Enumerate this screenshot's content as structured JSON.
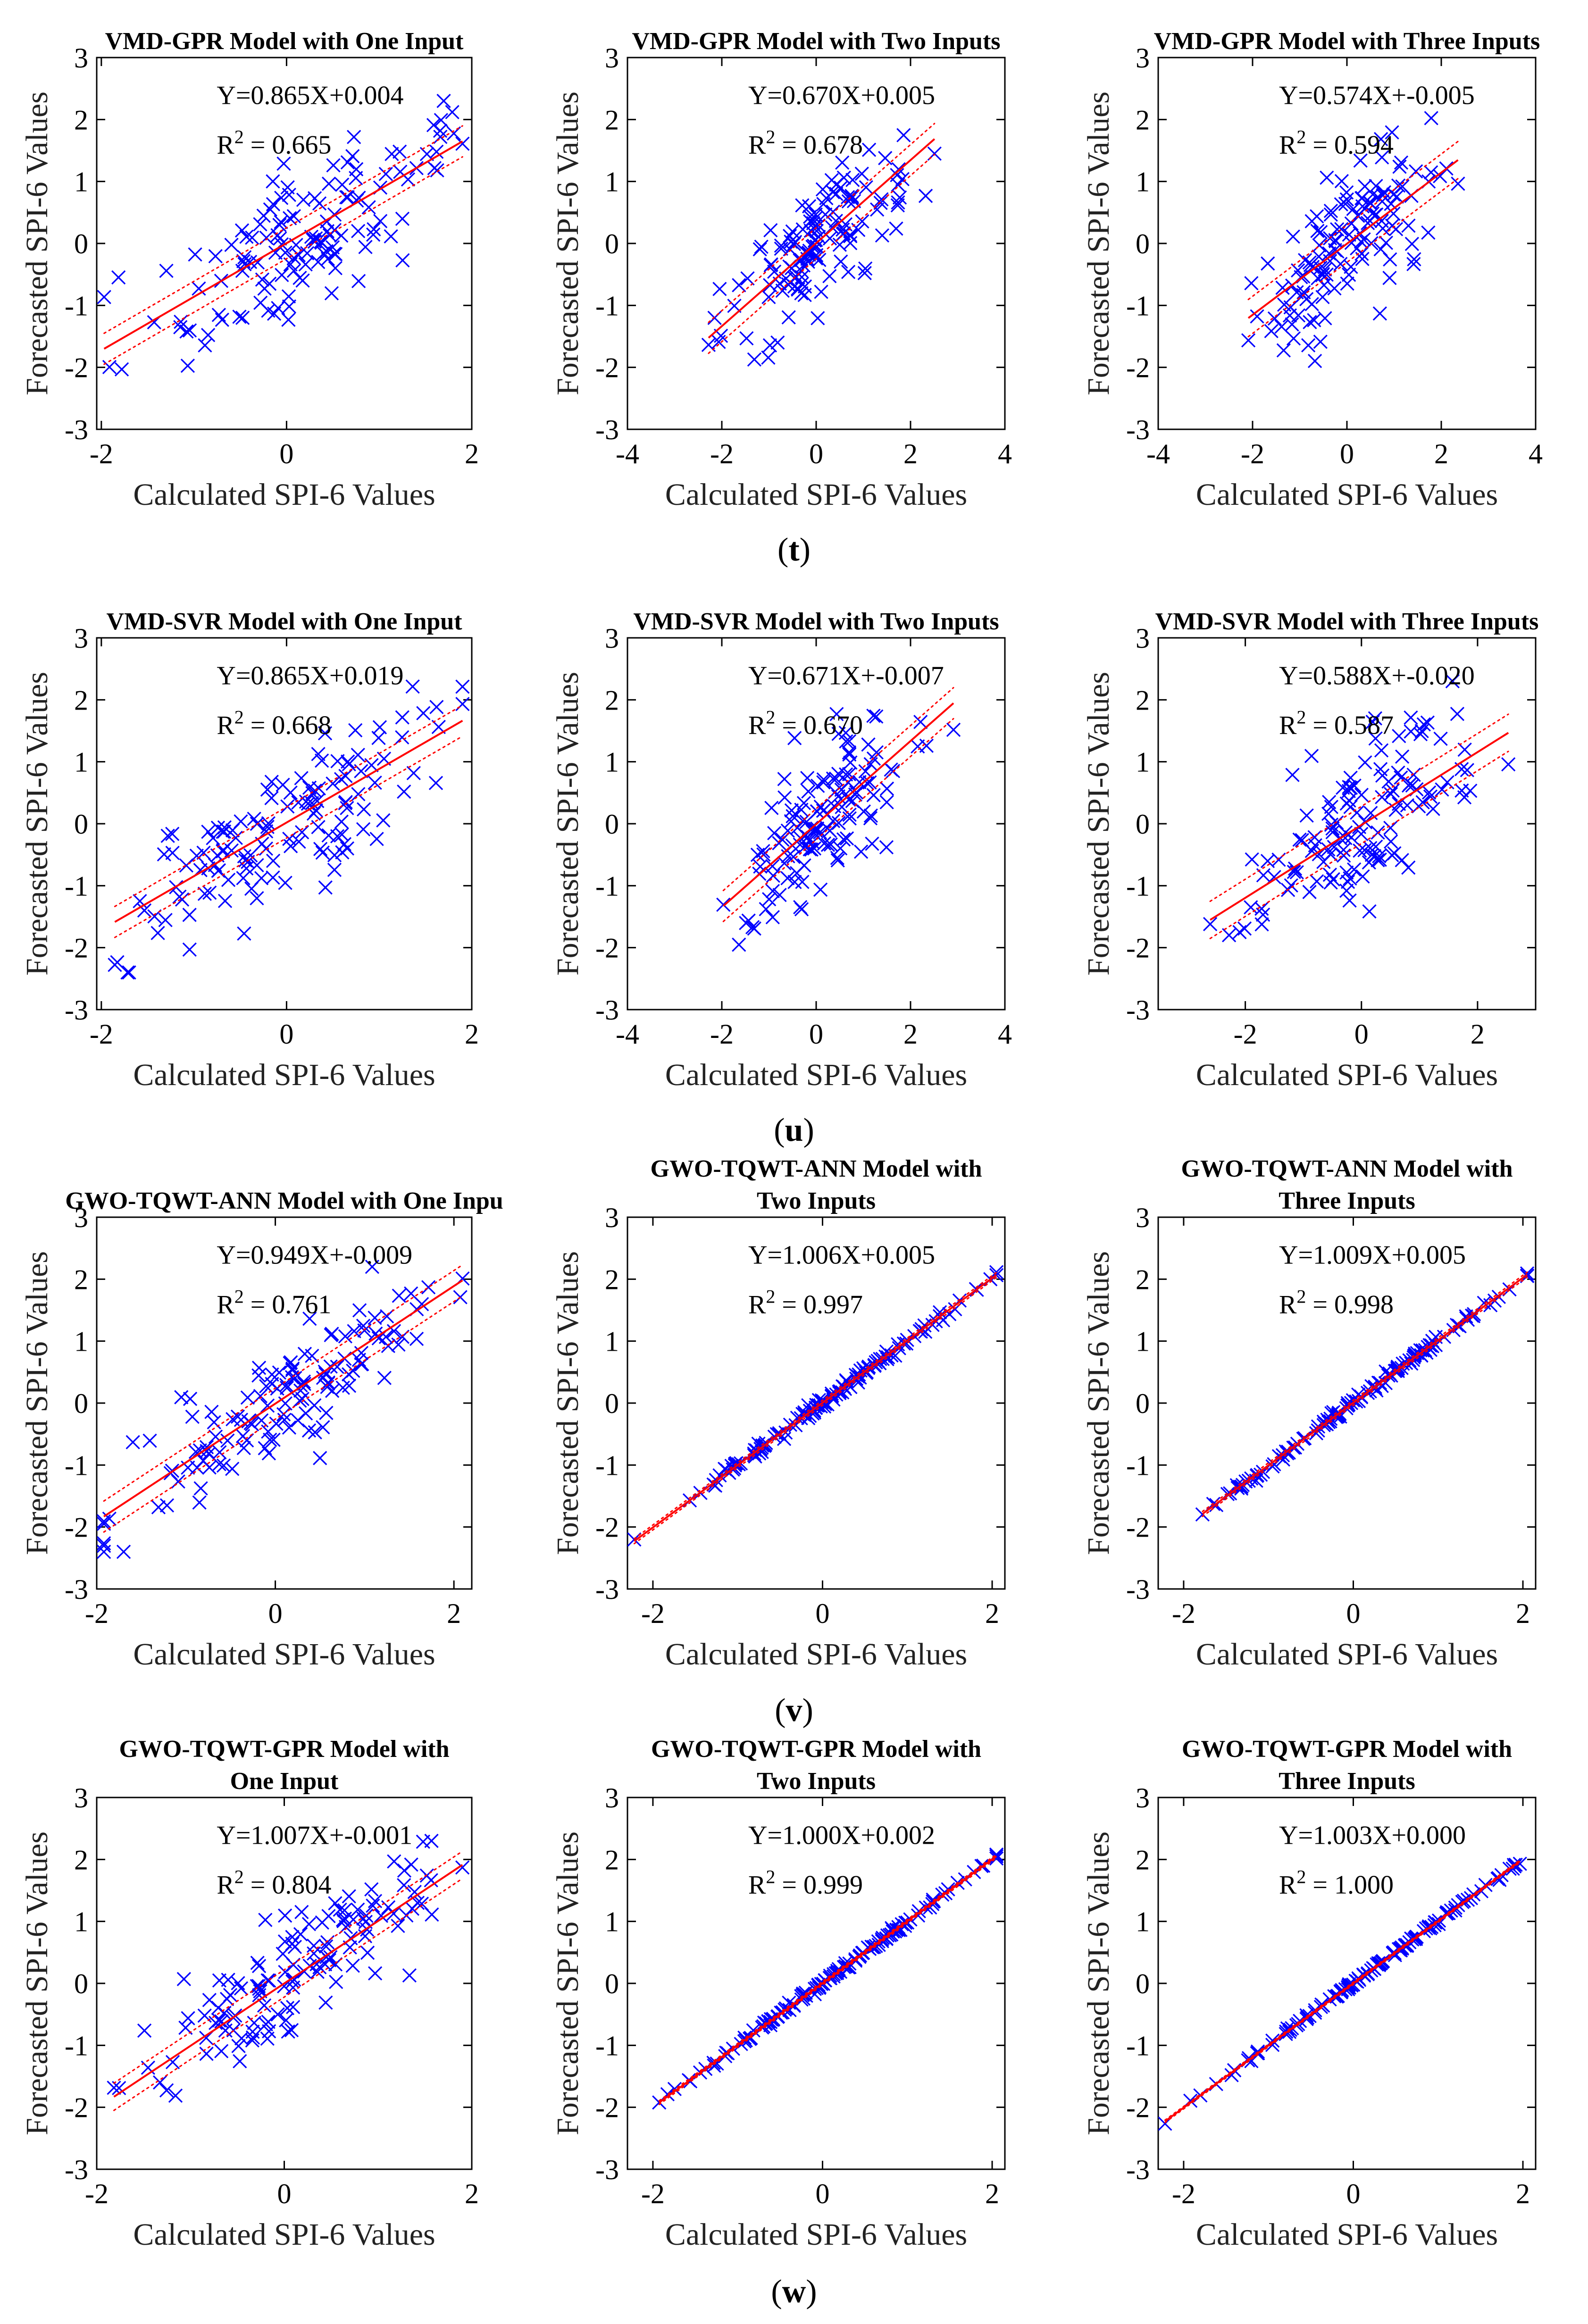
{
  "figure": {
    "row_labels": [
      "(t)",
      "(u)",
      "(v)",
      "(w)"
    ],
    "colors": {
      "points": "#0000ff",
      "fit": "#ff0000",
      "axis": "#000000",
      "background": "#ffffff"
    }
  },
  "chart_data": [
    {
      "type": "scatter",
      "title": [
        "VMD-GPR Model with One Input"
      ],
      "xlabel": "Calculated SPI-6 Values",
      "ylabel": "Forecasted SPI-6 Values",
      "xlim": [
        -2.05,
        2.0
      ],
      "xticks": [
        -2,
        0,
        2
      ],
      "ylim": [
        -3,
        3
      ],
      "yticks": [
        -3,
        -2,
        -1,
        0,
        1,
        2,
        3
      ],
      "fit": {
        "slope": 0.865,
        "intercept": 0.004,
        "ci_offset": 0.25
      },
      "equation": "Y=0.865X+0.004",
      "r2": "= 0.665",
      "noise": 0.55,
      "n": 135,
      "seed": 11
    },
    {
      "type": "scatter",
      "title": [
        "VMD-GPR Model with Two Inputs"
      ],
      "xlabel": "Calculated SPI-6 Values",
      "ylabel": "Forecasted SPI-6 Values",
      "xlim": [
        -4,
        4
      ],
      "xticks": [
        -4,
        -2,
        0,
        2,
        4
      ],
      "ylim": [
        -3,
        3
      ],
      "yticks": [
        -3,
        -2,
        -1,
        0,
        1,
        2,
        3
      ],
      "fit": {
        "slope": 0.67,
        "intercept": 0.005,
        "ci_offset": 0.25
      },
      "equation": "Y=0.670X+0.005",
      "r2": "= 0.678",
      "noise": 0.5,
      "n": 135,
      "seed": 12
    },
    {
      "type": "scatter",
      "title": [
        "VMD-GPR Model with Three Inputs"
      ],
      "xlabel": "Calculated SPI-6 Values",
      "ylabel": "Forecasted SPI-6 Values",
      "xlim": [
        -4,
        4
      ],
      "xticks": [
        -4,
        -2,
        0,
        2,
        4
      ],
      "ylim": [
        -3,
        3
      ],
      "yticks": [
        -3,
        -2,
        -1,
        0,
        1,
        2,
        3
      ],
      "fit": {
        "slope": 0.574,
        "intercept": -0.005,
        "ci_offset": 0.3
      },
      "equation": "Y=0.574X+-0.005",
      "r2": "= 0.594",
      "noise": 0.6,
      "n": 135,
      "seed": 13
    },
    {
      "type": "scatter",
      "title": [
        "VMD-SVR Model with One Input"
      ],
      "xlabel": "Calculated SPI-6 Values",
      "ylabel": "Forecasted SPI-6 Values",
      "xlim": [
        -2.05,
        2.0
      ],
      "xticks": [
        -2,
        0,
        2
      ],
      "ylim": [
        -3,
        3
      ],
      "yticks": [
        -3,
        -2,
        -1,
        0,
        1,
        2,
        3
      ],
      "fit": {
        "slope": 0.865,
        "intercept": 0.019,
        "ci_offset": 0.25
      },
      "equation": "Y=0.865X+0.019",
      "r2": "= 0.668",
      "noise": 0.55,
      "n": 135,
      "seed": 21
    },
    {
      "type": "scatter",
      "title": [
        "VMD-SVR Model with Two Inputs"
      ],
      "xlabel": "Calculated SPI-6 Values",
      "ylabel": "Forecasted SPI-6 Values",
      "xlim": [
        -4,
        4
      ],
      "xticks": [
        -4,
        -2,
        0,
        2,
        4
      ],
      "ylim": [
        -3,
        3
      ],
      "yticks": [
        -3,
        -2,
        -1,
        0,
        1,
        2,
        3
      ],
      "fit": {
        "slope": 0.671,
        "intercept": -0.007,
        "ci_offset": 0.25
      },
      "equation": "Y=0.671X+-0.007",
      "r2": "= 0.670",
      "noise": 0.5,
      "n": 135,
      "seed": 22
    },
    {
      "type": "scatter",
      "title": [
        "VMD-SVR Model with Three Inputs"
      ],
      "xlabel": "Calculated SPI-6 Values",
      "ylabel": "Forecasted SPI-6 Values",
      "xlim": [
        -3.5,
        3.0
      ],
      "xticks": [
        -2,
        0,
        2
      ],
      "ylim": [
        -3,
        3
      ],
      "yticks": [
        -3,
        -2,
        -1,
        0,
        1,
        2,
        3
      ],
      "fit": {
        "slope": 0.588,
        "intercept": -0.02,
        "ci_offset": 0.3
      },
      "equation": "Y=0.588X+-0.020",
      "r2": "= 0.587",
      "noise": 0.6,
      "n": 135,
      "seed": 23
    },
    {
      "type": "scatter",
      "title": [
        "GWO-TQWT-ANN Model with One Inpu"
      ],
      "xlabel": "Calculated SPI-6 Values",
      "ylabel": "Forecasted SPI-6 Values",
      "xlim": [
        -2.0,
        2.2
      ],
      "xticks": [
        -2,
        0,
        2
      ],
      "ylim": [
        -3,
        3
      ],
      "yticks": [
        -3,
        -2,
        -1,
        0,
        1,
        2,
        3
      ],
      "fit": {
        "slope": 0.949,
        "intercept": -0.009,
        "ci_offset": 0.25
      },
      "equation": "Y=0.949X+-0.009",
      "r2": "= 0.761",
      "noise": 0.45,
      "n": 135,
      "seed": 31
    },
    {
      "type": "scatter",
      "title": [
        "GWO-TQWT-ANN Model with",
        "Two Inputs"
      ],
      "xlabel": "Calculated SPI-6 Values",
      "ylabel": "Forecasted SPI-6 Values",
      "xlim": [
        -2.3,
        2.15
      ],
      "xticks": [
        -2,
        0,
        2
      ],
      "ylim": [
        -3,
        3
      ],
      "yticks": [
        -3,
        -2,
        -1,
        0,
        1,
        2,
        3
      ],
      "fit": {
        "slope": 1.006,
        "intercept": 0.005,
        "ci_offset": 0.04
      },
      "equation": "Y=1.006X+0.005",
      "r2": "= 0.997",
      "noise": 0.05,
      "n": 135,
      "seed": 32
    },
    {
      "type": "scatter",
      "title": [
        "GWO-TQWT-ANN Model with",
        "Three Inputs"
      ],
      "xlabel": "Calculated SPI-6 Values",
      "ylabel": "Forecasted SPI-6 Values",
      "xlim": [
        -2.3,
        2.15
      ],
      "xticks": [
        -2,
        0,
        2
      ],
      "ylim": [
        -3,
        3
      ],
      "yticks": [
        -3,
        -2,
        -1,
        0,
        1,
        2,
        3
      ],
      "fit": {
        "slope": 1.009,
        "intercept": 0.005,
        "ci_offset": 0.04
      },
      "equation": "Y=1.009X+0.005",
      "r2": "= 0.998",
      "noise": 0.04,
      "n": 135,
      "seed": 33
    },
    {
      "type": "scatter",
      "title": [
        "GWO-TQWT-GPR Model with",
        "One Input"
      ],
      "xlabel": "Calculated SPI-6 Values",
      "ylabel": "Forecasted SPI-6 Values",
      "xlim": [
        -2.0,
        2.0
      ],
      "xticks": [
        -2,
        0,
        2
      ],
      "ylim": [
        -3,
        3
      ],
      "yticks": [
        -3,
        -2,
        -1,
        0,
        1,
        2,
        3
      ],
      "fit": {
        "slope": 1.007,
        "intercept": -0.001,
        "ci_offset": 0.22
      },
      "equation": "Y=1.007X+-0.001",
      "r2": "= 0.804",
      "noise": 0.42,
      "n": 135,
      "seed": 41
    },
    {
      "type": "scatter",
      "title": [
        "GWO-TQWT-GPR Model with",
        "Two Inputs"
      ],
      "xlabel": "Calculated SPI-6 Values",
      "ylabel": "Forecasted SPI-6 Values",
      "xlim": [
        -2.3,
        2.15
      ],
      "xticks": [
        -2,
        0,
        2
      ],
      "ylim": [
        -3,
        3
      ],
      "yticks": [
        -3,
        -2,
        -1,
        0,
        1,
        2,
        3
      ],
      "fit": {
        "slope": 1.0,
        "intercept": 0.002,
        "ci_offset": 0.03
      },
      "equation": "Y=1.000X+0.002",
      "r2": "= 0.999",
      "noise": 0.03,
      "n": 135,
      "seed": 42
    },
    {
      "type": "scatter",
      "title": [
        "GWO-TQWT-GPR Model with",
        "Three Inputs"
      ],
      "xlabel": "Calculated SPI-6 Values",
      "ylabel": "Forecasted SPI-6 Values",
      "xlim": [
        -2.3,
        2.15
      ],
      "xticks": [
        -2,
        0,
        2
      ],
      "ylim": [
        -3,
        3
      ],
      "yticks": [
        -3,
        -2,
        -1,
        0,
        1,
        2,
        3
      ],
      "fit": {
        "slope": 1.003,
        "intercept": 0.0,
        "ci_offset": 0.02
      },
      "equation": "Y=1.003X+0.000",
      "r2": "= 1.000",
      "noise": 0.02,
      "n": 135,
      "seed": 43
    }
  ]
}
